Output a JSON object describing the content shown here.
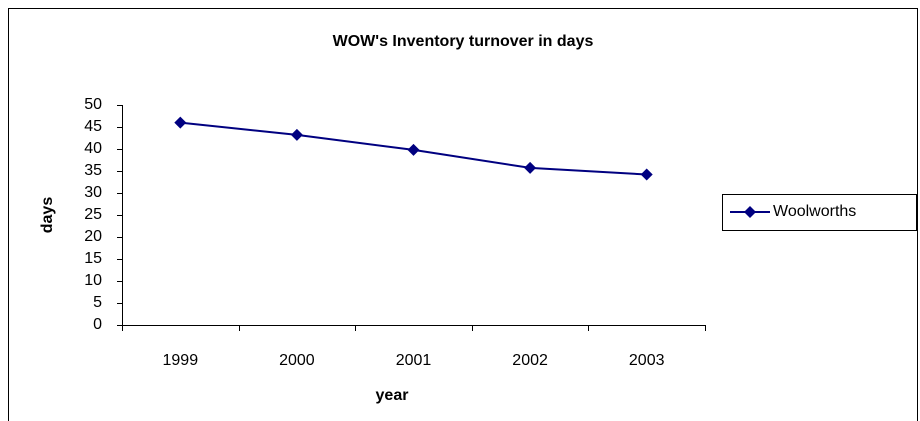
{
  "chart_data": {
    "type": "line",
    "title": "WOW's Inventory turnover in days",
    "x_label": "year",
    "y_label": "days",
    "categories": [
      "1999",
      "2000",
      "2001",
      "2002",
      "2003"
    ],
    "series": [
      {
        "name": "Woolworths",
        "color": "#000080",
        "values": [
          46,
          43.2,
          39.8,
          35.7,
          34.2
        ]
      }
    ],
    "ylim": [
      0,
      50
    ],
    "yticks": [
      0,
      5,
      10,
      15,
      20,
      25,
      30,
      35,
      40,
      45,
      50
    ],
    "grid": false,
    "legend": "right"
  }
}
